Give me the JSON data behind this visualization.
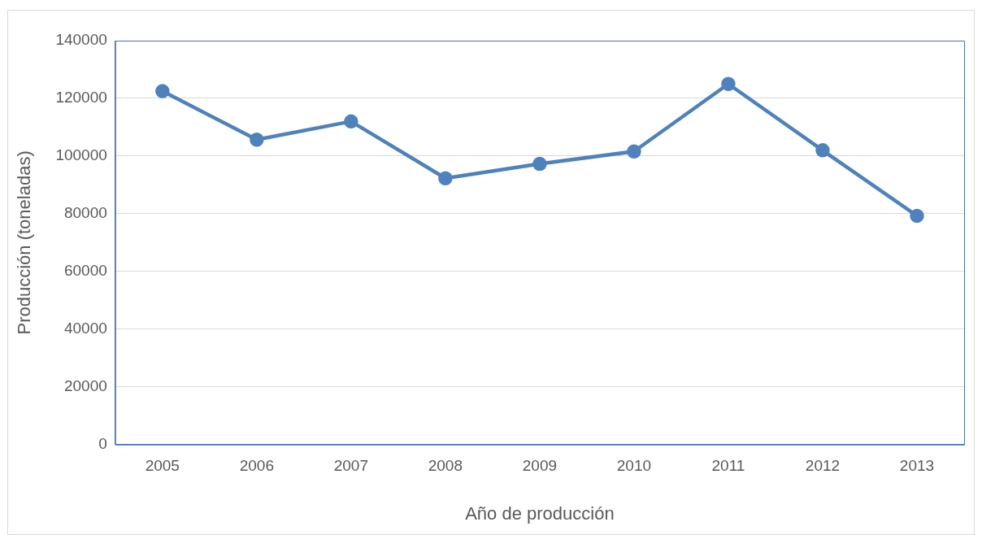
{
  "chart_data": {
    "type": "line",
    "xlabel": "Año de producción",
    "ylabel": "Producción (toneladas)",
    "categories": [
      "2005",
      "2006",
      "2007",
      "2008",
      "2009",
      "2010",
      "2011",
      "2012",
      "2013"
    ],
    "series": [
      {
        "color": "#4f81bd",
        "values": [
          122500,
          105700,
          112000,
          92300,
          97300,
          101600,
          125000,
          102000,
          79300
        ]
      }
    ],
    "ylim": [
      0,
      140000
    ],
    "yticks": [
      0,
      20000,
      40000,
      60000,
      80000,
      100000,
      120000,
      140000
    ],
    "grid": "y",
    "legend": false,
    "marker": "circle",
    "line_style": "solid"
  }
}
